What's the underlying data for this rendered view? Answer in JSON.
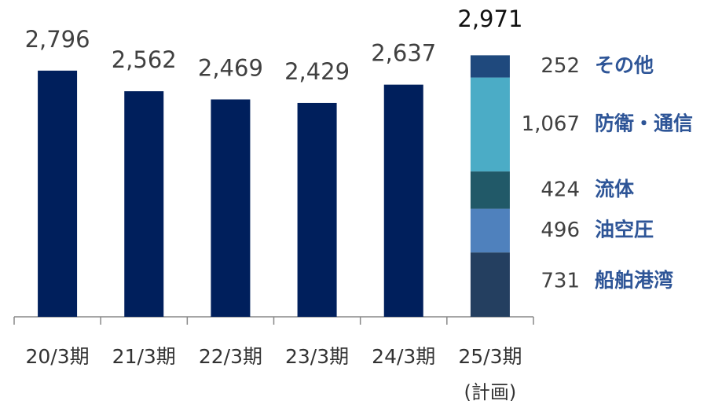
{
  "chart_data": {
    "type": "bar",
    "categories": [
      "20/3期",
      "21/3期",
      "22/3期",
      "23/3期",
      "24/3期",
      "25/3期"
    ],
    "category_note": "(計画)",
    "values": [
      2796,
      2562,
      2469,
      2429,
      2637,
      null
    ],
    "value_labels": [
      "2,796",
      "2,562",
      "2,469",
      "2,429",
      "2,637",
      null
    ],
    "color": "#001f5c",
    "ylim": [
      0,
      3000
    ],
    "stack": {
      "category_index": 5,
      "total": 2971,
      "total_label": "2,971",
      "segments": [
        {
          "name": "船舶港湾",
          "value": 731,
          "color": "#243f60"
        },
        {
          "name": "油空圧",
          "value": 496,
          "color": "#4f81bd"
        },
        {
          "name": "流体",
          "value": 424,
          "color": "#215968"
        },
        {
          "name": "防衛・通信",
          "value": 1067,
          "value_label": "1,067",
          "color": "#4bacc6"
        },
        {
          "name": "その他",
          "value": 252,
          "color": "#1f497d"
        }
      ]
    }
  }
}
